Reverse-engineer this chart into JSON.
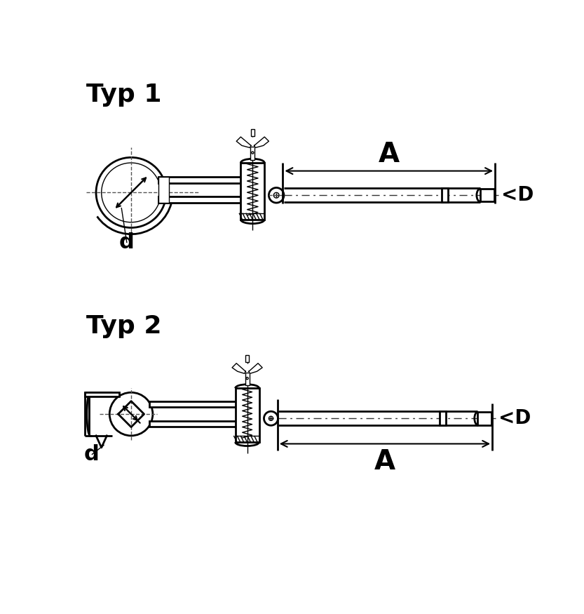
{
  "title1": "Typ 1",
  "title2": "Typ 2",
  "label_A": "A",
  "label_D": "<D",
  "label_d": "d",
  "bg_color": "#ffffff",
  "line_color": "#000000",
  "title_fontsize": 26,
  "label_fontsize": 18,
  "dim_fontsize": 24
}
